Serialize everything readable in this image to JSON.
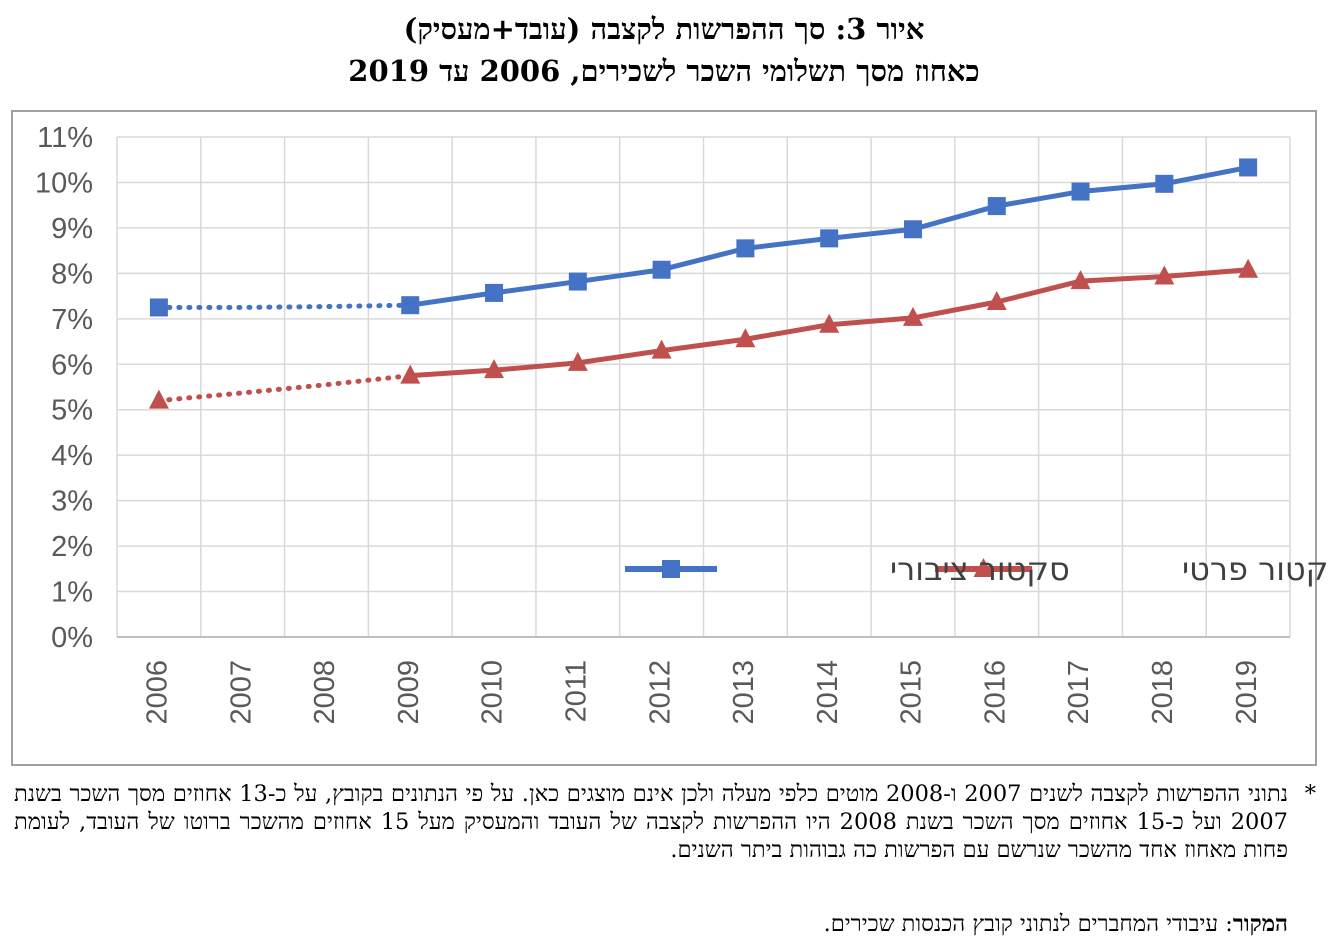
{
  "figure": {
    "title_line1": "איור 3: סך ההפרשות לקצבה (עובד+מעסיק)",
    "title_line2": "כאחוז מסך תשלומי השכר לשכירים, 2006 עד 2019"
  },
  "chart_data": {
    "type": "line",
    "categories": [
      "2006",
      "2007",
      "2008",
      "2009",
      "2010",
      "2011",
      "2012",
      "2013",
      "2014",
      "2015",
      "2016",
      "2017",
      "2018",
      "2019"
    ],
    "y_ticks": [
      "0%",
      "1%",
      "2%",
      "3%",
      "4%",
      "5%",
      "6%",
      "7%",
      "8%",
      "9%",
      "10%",
      "11%"
    ],
    "ylim": [
      0,
      11
    ],
    "grid": true,
    "legend_position": "bottom-right inside plot",
    "dotted_segment": [
      "2006",
      "2009"
    ],
    "series": [
      {
        "name": "סקטור ציבורי",
        "color": "#4472c4",
        "marker": "square",
        "values": [
          7.25,
          7.25,
          7.27,
          7.3,
          7.57,
          7.82,
          8.08,
          8.55,
          8.77,
          8.97,
          9.48,
          9.8,
          9.97,
          10.33
        ]
      },
      {
        "name": "סקטור פרטי",
        "color": "#c0504d",
        "marker": "triangle",
        "values": [
          5.2,
          5.37,
          5.55,
          5.75,
          5.87,
          6.03,
          6.3,
          6.55,
          6.87,
          7.02,
          7.37,
          7.83,
          7.93,
          8.08
        ]
      }
    ]
  },
  "footnote": {
    "star": "*",
    "text": "נתוני ההפרשות לקצבה לשנים 2007 ו-2008 מוטים כלפי מעלה ולכן אינם מוצגים כאן. על פי הנתונים בקובץ, על כ-13 אחוזים מסך השכר בשנת 2007 ועל כ-15 אחוזים מסך השכר בשנת 2008 היו ההפרשות לקצבה של העובד והמעסיק מעל 15 אחוזים מהשכר ברוטו של העובד, לעומת פחות מאחוז אחד מהשכר שנרשם עם הפרשות כה גבוהות ביתר השנים."
  },
  "source": {
    "label": "המקור",
    "text": ": עיבודי המחברים לנתוני קובץ הכנסות שכירים."
  }
}
